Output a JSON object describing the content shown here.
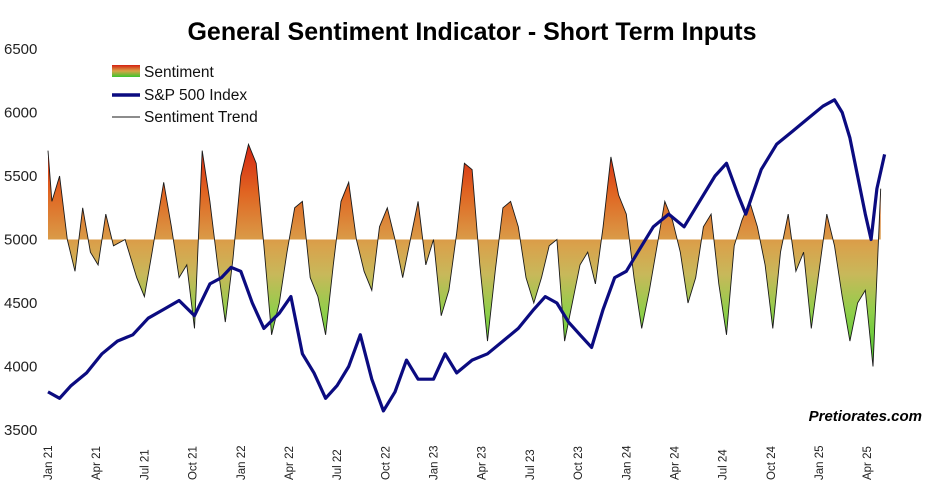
{
  "chart_data": {
    "type": "line",
    "title": "General Sentiment Indicator - Short Term Inputs",
    "xlabel": "",
    "ylabel": "",
    "ylim": [
      3500,
      6500
    ],
    "yticks": [
      "6500",
      "6000",
      "5500",
      "5000",
      "4500",
      "4000",
      "3500"
    ],
    "xticks": [
      "Jan 21",
      "Apr 21",
      "Jul 21",
      "Oct 21",
      "Jan 22",
      "Apr 22",
      "Jul 22",
      "Oct 22",
      "Jan 23",
      "Apr 23",
      "Jul 23",
      "Oct 23",
      "Jan 24",
      "Apr 24",
      "Jul 24",
      "Oct 24",
      "Jan 25",
      "Apr 25"
    ],
    "baseline": 5000,
    "grid": false,
    "legend_position": "top-left",
    "legend": [
      "Sentiment",
      "S&P 500 Index",
      "Sentiment Trend"
    ],
    "watermark": "Pretiorates.com",
    "colors": {
      "sentiment_high": "#d62410",
      "sentiment_mid": "#d8b050",
      "sentiment_low": "#3fcc30",
      "sp500": "#0b0b80",
      "trend": "#1a1a1a"
    },
    "series": [
      {
        "name": "S&P 500 Index",
        "x": [
          2021.0,
          2021.06,
          2021.12,
          2021.2,
          2021.28,
          2021.36,
          2021.44,
          2021.52,
          2021.6,
          2021.68,
          2021.76,
          2021.84,
          2021.9,
          2021.95,
          2022.0,
          2022.06,
          2022.12,
          2022.2,
          2022.26,
          2022.32,
          2022.38,
          2022.44,
          2022.5,
          2022.56,
          2022.62,
          2022.68,
          2022.74,
          2022.8,
          2022.86,
          2022.92,
          2023.0,
          2023.06,
          2023.12,
          2023.2,
          2023.28,
          2023.36,
          2023.44,
          2023.52,
          2023.58,
          2023.64,
          2023.7,
          2023.76,
          2023.82,
          2023.88,
          2023.94,
          2024.0,
          2024.06,
          2024.14,
          2024.22,
          2024.3,
          2024.38,
          2024.46,
          2024.52,
          2024.58,
          2024.62,
          2024.7,
          2024.78,
          2024.86,
          2024.94,
          2025.02,
          2025.08,
          2025.12,
          2025.16,
          2025.2,
          2025.24,
          2025.27,
          2025.3,
          2025.34
        ],
        "values": [
          3800,
          3750,
          3850,
          3950,
          4100,
          4200,
          4250,
          4380,
          4450,
          4520,
          4400,
          4650,
          4700,
          4780,
          4750,
          4500,
          4300,
          4420,
          4550,
          4100,
          3950,
          3750,
          3850,
          4000,
          4250,
          3900,
          3650,
          3800,
          4050,
          3900,
          3900,
          4100,
          3950,
          4050,
          4100,
          4200,
          4300,
          4450,
          4550,
          4500,
          4350,
          4250,
          4150,
          4450,
          4700,
          4750,
          4900,
          5100,
          5200,
          5100,
          5300,
          5500,
          5600,
          5350,
          5200,
          5550,
          5750,
          5850,
          5950,
          6050,
          6100,
          6000,
          5800,
          5500,
          5200,
          5000,
          5400,
          5670
        ]
      },
      {
        "name": "Sentiment",
        "x": [
          2021.0,
          2021.02,
          2021.06,
          2021.1,
          2021.14,
          2021.18,
          2021.22,
          2021.26,
          2021.3,
          2021.34,
          2021.4,
          2021.46,
          2021.5,
          2021.54,
          2021.6,
          2021.64,
          2021.68,
          2021.72,
          2021.76,
          2021.8,
          2021.84,
          2021.88,
          2021.92,
          2021.96,
          2022.0,
          2022.04,
          2022.08,
          2022.12,
          2022.16,
          2022.2,
          2022.24,
          2022.28,
          2022.32,
          2022.36,
          2022.4,
          2022.44,
          2022.48,
          2022.52,
          2022.56,
          2022.6,
          2022.64,
          2022.68,
          2022.72,
          2022.76,
          2022.8,
          2022.84,
          2022.88,
          2022.92,
          2022.96,
          2023.0,
          2023.04,
          2023.08,
          2023.12,
          2023.16,
          2023.2,
          2023.24,
          2023.28,
          2023.32,
          2023.36,
          2023.4,
          2023.44,
          2023.48,
          2023.52,
          2023.56,
          2023.6,
          2023.64,
          2023.68,
          2023.72,
          2023.76,
          2023.8,
          2023.84,
          2023.88,
          2023.92,
          2023.96,
          2024.0,
          2024.04,
          2024.08,
          2024.12,
          2024.16,
          2024.2,
          2024.24,
          2024.28,
          2024.32,
          2024.36,
          2024.4,
          2024.44,
          2024.48,
          2024.52,
          2024.56,
          2024.6,
          2024.64,
          2024.68,
          2024.72,
          2024.76,
          2024.8,
          2024.84,
          2024.88,
          2024.92,
          2024.96,
          2025.0,
          2025.04,
          2025.08,
          2025.12,
          2025.16,
          2025.2,
          2025.24,
          2025.28,
          2025.32
        ],
        "values": [
          5700,
          5300,
          5500,
          5000,
          4750,
          5250,
          4900,
          4800,
          5200,
          4950,
          5000,
          4700,
          4550,
          4900,
          5450,
          5100,
          4700,
          4800,
          4300,
          5700,
          5300,
          4800,
          4350,
          4850,
          5500,
          5750,
          5600,
          4950,
          4250,
          4500,
          4900,
          5250,
          5300,
          4700,
          4550,
          4250,
          4800,
          5300,
          5450,
          5000,
          4750,
          4600,
          5100,
          5250,
          5000,
          4700,
          5000,
          5300,
          4800,
          5000,
          4400,
          4600,
          5050,
          5600,
          5550,
          4800,
          4200,
          4750,
          5250,
          5300,
          5100,
          4700,
          4500,
          4700,
          4950,
          5000,
          4200,
          4500,
          4800,
          4900,
          4650,
          5100,
          5650,
          5350,
          5200,
          4700,
          4300,
          4600,
          4950,
          5300,
          5150,
          4900,
          4500,
          4700,
          5100,
          5200,
          4650,
          4250,
          4950,
          5150,
          5300,
          5100,
          4800,
          4300,
          4900,
          5200,
          4750,
          4900,
          4300,
          4750,
          5200,
          4950,
          4550,
          4200,
          4500,
          4600,
          4000,
          5400
        ]
      }
    ]
  }
}
